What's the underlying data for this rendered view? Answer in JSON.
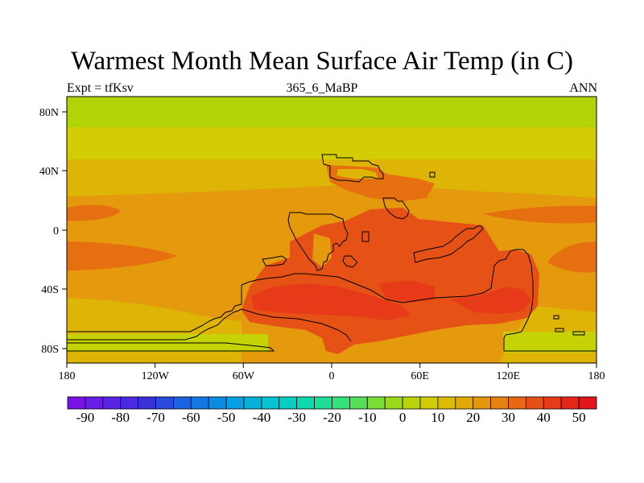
{
  "title": "Warmest Month Mean Surface Air Temp (in C)",
  "left_label": "Expt = tfKsv",
  "center_label": "365_6_MaBP",
  "right_label": "ANN",
  "x_ticks": [
    "180",
    "120W",
    "60W",
    "0",
    "60E",
    "120E",
    "180"
  ],
  "y_ticks": [
    "80N",
    "40N",
    "0",
    "40S",
    "80S"
  ],
  "colorbar": {
    "labels": [
      "-90",
      "-80",
      "-70",
      "-60",
      "-50",
      "-40",
      "-30",
      "-20",
      "-10",
      "0",
      "10",
      "20",
      "30",
      "40",
      "50"
    ],
    "colors": [
      "#7a12e8",
      "#6a1ce8",
      "#5a22e4",
      "#4a2ae0",
      "#3a30d8",
      "#2a4ade",
      "#1c62e0",
      "#1478e2",
      "#0c8ce2",
      "#08a0e2",
      "#06b2dc",
      "#06c2d2",
      "#08cec2",
      "#10d8ae",
      "#1ede96",
      "#36e07a",
      "#56e05a",
      "#78de34",
      "#9ad81a",
      "#b8d40a",
      "#d0cc06",
      "#dcbc06",
      "#e2aa08",
      "#e4960c",
      "#e6800e",
      "#e66812",
      "#e65016",
      "#e63a18",
      "#e4261a",
      "#e2161c"
    ]
  },
  "palette": {
    "green_band": "#b0d406",
    "yellow": "#d4cc04",
    "yellow_orange": "#deb406",
    "orange": "#e49a0c",
    "dark_orange": "#e67010",
    "red_orange": "#e65216",
    "red": "#e63a18",
    "light_green": "#c4d206"
  }
}
